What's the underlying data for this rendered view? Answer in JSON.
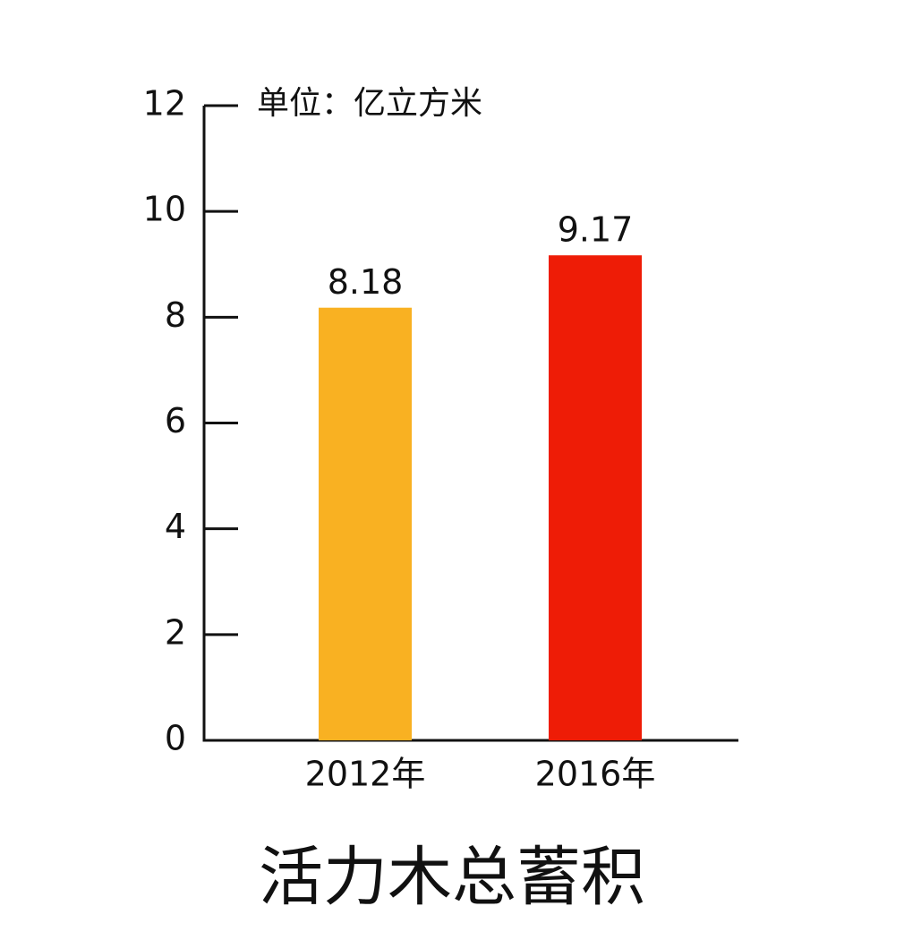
{
  "chart_data": {
    "type": "bar",
    "title": "活力木总蓄积",
    "unit_label": "单位：亿立方米",
    "categories": [
      "2012年",
      "2016年"
    ],
    "values": [
      8.18,
      9.17
    ],
    "colors": [
      "#f9b122",
      "#ee1c06"
    ],
    "ylim": [
      0,
      12
    ],
    "yticks": [
      0,
      2,
      4,
      6,
      8,
      10,
      12
    ],
    "grid": false
  }
}
